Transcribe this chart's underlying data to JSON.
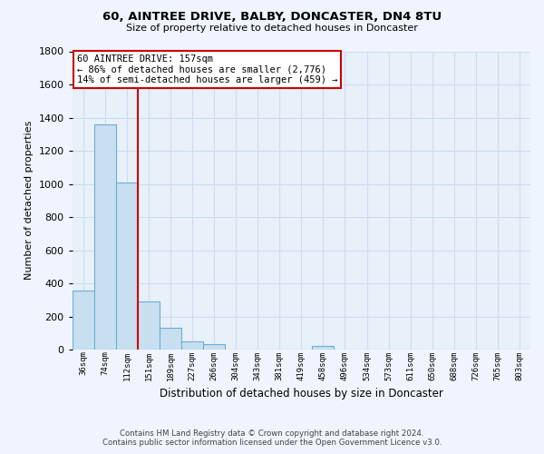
{
  "title": "60, AINTREE DRIVE, BALBY, DONCASTER, DN4 8TU",
  "subtitle": "Size of property relative to detached houses in Doncaster",
  "xlabel": "Distribution of detached houses by size in Doncaster",
  "ylabel": "Number of detached properties",
  "bar_labels": [
    "36sqm",
    "74sqm",
    "112sqm",
    "151sqm",
    "189sqm",
    "227sqm",
    "266sqm",
    "304sqm",
    "343sqm",
    "381sqm",
    "419sqm",
    "458sqm",
    "496sqm",
    "534sqm",
    "573sqm",
    "611sqm",
    "650sqm",
    "688sqm",
    "726sqm",
    "765sqm",
    "803sqm"
  ],
  "bar_values": [
    355,
    1360,
    1010,
    290,
    130,
    48,
    35,
    0,
    0,
    0,
    0,
    20,
    0,
    0,
    0,
    0,
    0,
    0,
    0,
    0,
    0
  ],
  "bar_color": "#c8dff0",
  "bar_edge_color": "#6baed6",
  "vline_x_idx": 3,
  "vline_color": "#cc0000",
  "ylim": [
    0,
    1800
  ],
  "yticks": [
    0,
    200,
    400,
    600,
    800,
    1000,
    1200,
    1400,
    1600,
    1800
  ],
  "annotation_title": "60 AINTREE DRIVE: 157sqm",
  "annotation_line1": "← 86% of detached houses are smaller (2,776)",
  "annotation_line2": "14% of semi-detached houses are larger (459) →",
  "annotation_box_color": "#ffffff",
  "annotation_box_edge": "#cc0000",
  "footer_line1": "Contains HM Land Registry data © Crown copyright and database right 2024.",
  "footer_line2": "Contains public sector information licensed under the Open Government Licence v3.0.",
  "grid_color": "#ccddf0",
  "bg_color": "#f0f4ff",
  "plot_bg_color": "#e8f0fa"
}
